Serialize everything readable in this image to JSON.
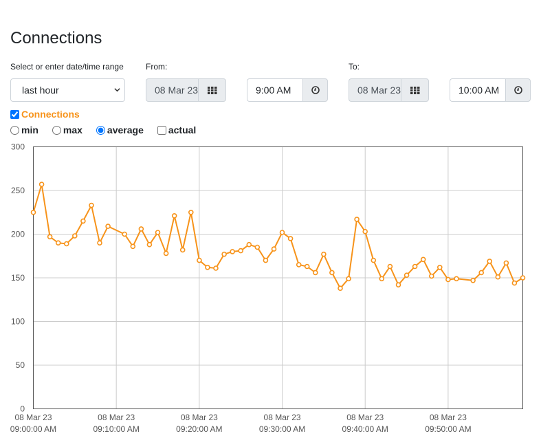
{
  "page": {
    "title": "Connections"
  },
  "range": {
    "label": "Select or enter date/time range",
    "value": "last hour"
  },
  "from": {
    "label": "From:",
    "date": "08 Mar 23",
    "time": "9:00 AM"
  },
  "to": {
    "label": "To:",
    "date": "08 Mar 23",
    "time": "10:00 AM"
  },
  "series_toggle": {
    "label": "Connections",
    "checked": true
  },
  "modes": {
    "min": "min",
    "max": "max",
    "average": "average",
    "actual": "actual"
  },
  "colors": {
    "series": "#f7931a",
    "grid": "#cccccc",
    "axis": "#555555"
  },
  "chart_data": {
    "type": "line",
    "ylim": [
      0,
      300
    ],
    "y_ticks": [
      "0",
      "50",
      "100",
      "150",
      "200",
      "250",
      "300"
    ],
    "x_ticks": [
      {
        "date": "08 Mar 23",
        "time": "09:00:00 AM"
      },
      {
        "date": "08 Mar 23",
        "time": "09:10:00 AM"
      },
      {
        "date": "08 Mar 23",
        "time": "09:20:00 AM"
      },
      {
        "date": "08 Mar 23",
        "time": "09:30:00 AM"
      },
      {
        "date": "08 Mar 23",
        "time": "09:40:00 AM"
      },
      {
        "date": "08 Mar 23",
        "time": "09:50:00 AM"
      }
    ],
    "xlim": [
      "09:00:00 AM",
      "09:59:00 AM"
    ],
    "series": [
      {
        "points": [
          [
            "09:00",
            225
          ],
          [
            "09:01",
            257
          ],
          [
            "09:02",
            197
          ],
          [
            "09:03",
            190
          ],
          [
            "09:04",
            189
          ],
          [
            "09:05",
            198
          ],
          [
            "09:06",
            215
          ],
          [
            "09:07",
            233
          ],
          [
            "09:08",
            190
          ],
          [
            "09:09",
            209
          ],
          [
            "09:11",
            200
          ],
          [
            "09:12",
            186
          ],
          [
            "09:13",
            206
          ],
          [
            "09:14",
            188
          ],
          [
            "09:15",
            202
          ],
          [
            "09:16",
            178
          ],
          [
            "09:17",
            221
          ],
          [
            "09:18",
            182
          ],
          [
            "09:19",
            225
          ],
          [
            "09:20",
            170
          ],
          [
            "09:21",
            162
          ],
          [
            "09:22",
            161
          ],
          [
            "09:23",
            177
          ],
          [
            "09:24",
            180
          ],
          [
            "09:25",
            181
          ],
          [
            "09:26",
            188
          ],
          [
            "09:27",
            185
          ],
          [
            "09:28",
            170
          ],
          [
            "09:29",
            183
          ],
          [
            "09:30",
            202
          ],
          [
            "09:31",
            195
          ],
          [
            "09:32",
            165
          ],
          [
            "09:33",
            163
          ],
          [
            "09:34",
            156
          ],
          [
            "09:35",
            177
          ],
          [
            "09:36",
            156
          ],
          [
            "09:37",
            138
          ],
          [
            "09:38",
            149
          ],
          [
            "09:39",
            217
          ],
          [
            "09:40",
            203
          ],
          [
            "09:41",
            170
          ],
          [
            "09:42",
            149
          ],
          [
            "09:43",
            163
          ],
          [
            "09:44",
            142
          ],
          [
            "09:45",
            153
          ],
          [
            "09:46",
            163
          ],
          [
            "09:47",
            171
          ],
          [
            "09:48",
            152
          ],
          [
            "09:49",
            162
          ],
          [
            "09:50",
            148
          ],
          [
            "09:51",
            149
          ],
          [
            "09:53",
            147
          ],
          [
            "09:54",
            156
          ],
          [
            "09:55",
            169
          ],
          [
            "09:56",
            151
          ],
          [
            "09:57",
            167
          ],
          [
            "09:58",
            144
          ],
          [
            "09:59",
            150
          ]
        ]
      }
    ]
  }
}
